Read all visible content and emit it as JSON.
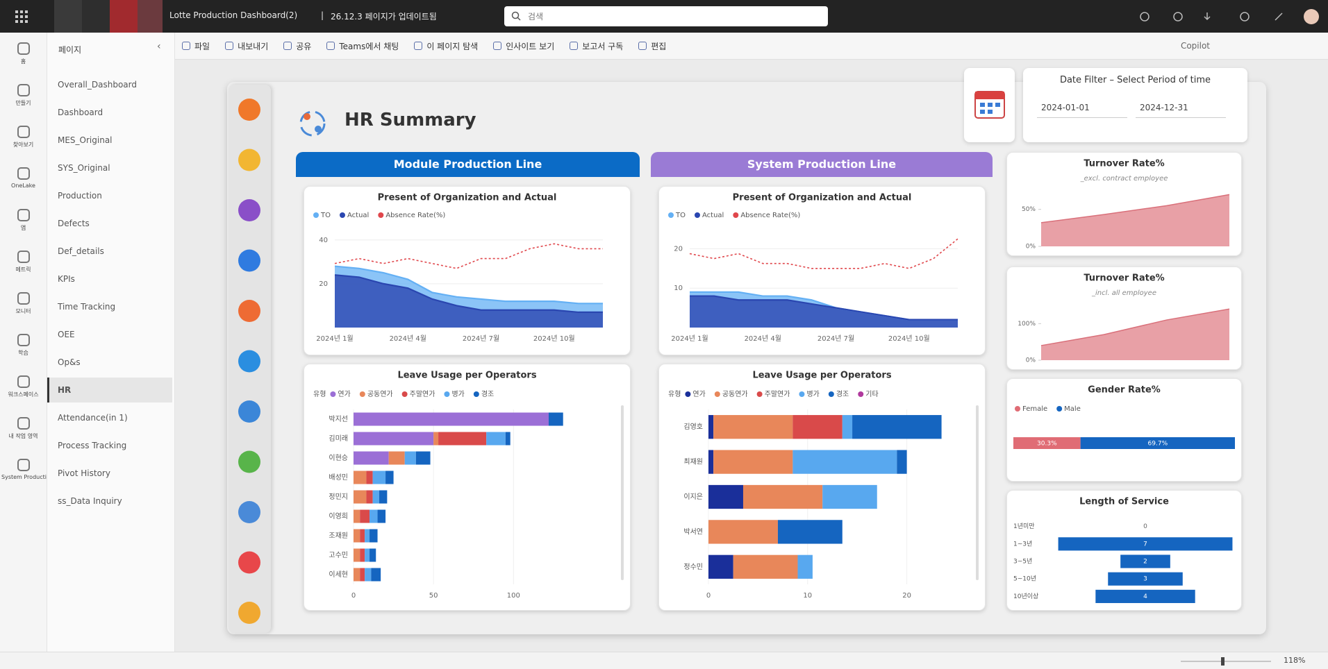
{
  "app": {
    "title": "Lotte Production Dashboard(2)",
    "subtitle": "26.12.3 페이지가 업데이트됨",
    "search": "검색"
  },
  "nav": [
    "홈",
    "만들기",
    "찾아보기",
    "OneLake",
    "앱",
    "메트릭",
    "모니터",
    "학습",
    "워크스페이스",
    "내 작업 영역",
    "System Producti..."
  ],
  "pages": {
    "header": "페이지",
    "selected": 11,
    "items": [
      "Overall_Dashboard",
      "Dashboard",
      "MES_Original",
      "SYS_Original",
      "Production",
      "Defects",
      "Def_details",
      "KPIs",
      "Time Tracking",
      "OEE",
      "Op&s",
      "HR",
      "Attendance(in 1)",
      "Process Tracking",
      "Pivot History",
      "ss_Data Inquiry"
    ]
  },
  "toolbar": {
    "items": [
      "파일",
      "내보내기",
      "공유",
      "Teams에서 채팅",
      "이 페이지 탐색",
      "인사이트 보기",
      "보고서 구독",
      "편집"
    ],
    "copilot": "Copilot"
  },
  "report": {
    "title": "HR Summary",
    "sections": [
      "Module Production Line",
      "System Production Line"
    ],
    "date_filter": {
      "label": "Date Filter – Select Period of time",
      "start": "2024-01-01",
      "end": "2024-12-31"
    }
  },
  "status": {
    "zoom": "118%"
  },
  "chart_data": [
    {
      "type": "line",
      "title": "Present of Organization and Actual",
      "categories": [
        "2024년 1월",
        null,
        null,
        "2024년 4월",
        null,
        null,
        "2024년 7월",
        null,
        null,
        "2024년 10월",
        null,
        null
      ],
      "series": [
        {
          "name": "TO",
          "color": "#64b0f4",
          "values": [
            28,
            27,
            25,
            22,
            16,
            14,
            13,
            12,
            12,
            12,
            11,
            11
          ]
        },
        {
          "name": "Actual",
          "color": "#2a46b0",
          "values": [
            24,
            23,
            20,
            18,
            13,
            10,
            8,
            8,
            8,
            8,
            7,
            7
          ]
        },
        {
          "name": "Absence Rate(%)",
          "color": "#e0474c",
          "axis": "y2",
          "values": [
            13,
            14,
            13,
            14,
            13,
            12,
            14,
            14,
            16,
            17,
            16,
            16
          ]
        }
      ],
      "ylim": [
        0,
        45
      ],
      "yticks": [
        20,
        40
      ],
      "y2lim": [
        0,
        20
      ]
    },
    {
      "type": "line",
      "title": "Present of Organization and Actual",
      "categories": [
        "2024년 1월",
        null,
        null,
        "2024년 4월",
        null,
        null,
        "2024년 7월",
        null,
        null,
        "2024년 10월",
        null,
        null
      ],
      "series": [
        {
          "name": "TO",
          "color": "#64b0f4",
          "values": [
            9,
            9,
            9,
            8,
            8,
            7,
            5,
            4,
            3,
            2,
            2,
            2
          ]
        },
        {
          "name": "Actual",
          "color": "#2a46b0",
          "values": [
            8,
            8,
            7,
            7,
            7,
            6,
            5,
            4,
            3,
            2,
            2,
            2
          ]
        },
        {
          "name": "Absence Rate(%)",
          "color": "#e0474c",
          "axis": "y2",
          "values": [
            15,
            14,
            15,
            13,
            13,
            12,
            12,
            12,
            13,
            12,
            14,
            18
          ]
        }
      ],
      "ylim": [
        0,
        25
      ],
      "yticks": [
        10,
        20
      ],
      "y2lim": [
        0,
        20
      ]
    },
    {
      "type": "hbar",
      "title": "Leave Usage per Operators",
      "legend_title": "유형",
      "categories": [
        "박지선",
        "김미래",
        "이현승",
        "배성민",
        "정민지",
        "이영희",
        "조재원",
        "고수민",
        "이세현"
      ],
      "series": [
        {
          "name": "연가",
          "color": "#9b6fd6",
          "values": [
            122,
            50,
            22,
            0,
            0,
            0,
            0,
            0,
            0
          ]
        },
        {
          "name": "공동연가",
          "color": "#e8875a",
          "values": [
            0,
            3,
            10,
            8,
            8,
            4,
            4,
            4,
            4
          ]
        },
        {
          "name": "주말연가",
          "color": "#d94a4a",
          "values": [
            0,
            30,
            0,
            4,
            4,
            6,
            3,
            3,
            3
          ]
        },
        {
          "name": "병가",
          "color": "#58a8ef",
          "values": [
            0,
            12,
            7,
            8,
            4,
            5,
            3,
            3,
            4
          ]
        },
        {
          "name": "경조",
          "color": "#1565c0",
          "values": [
            9,
            3,
            9,
            5,
            5,
            5,
            5,
            4,
            6
          ]
        }
      ],
      "xlim": [
        0,
        155
      ],
      "xticks": [
        0,
        50,
        100
      ]
    },
    {
      "type": "hbar",
      "title": "Leave Usage per Operators",
      "legend_title": "유형",
      "categories": [
        "김영호",
        "최재원",
        "이지은",
        "박서연",
        "정수민"
      ],
      "series": [
        {
          "name": "연가",
          "color": "#1a2f9a",
          "values": [
            0.5,
            0.5,
            3.5,
            0,
            2.5
          ]
        },
        {
          "name": "공동연가",
          "color": "#e8875a",
          "values": [
            8,
            8,
            8,
            7,
            6.5
          ]
        },
        {
          "name": "주말연가",
          "color": "#d94a4a",
          "values": [
            5,
            0,
            0,
            0,
            0
          ]
        },
        {
          "name": "병가",
          "color": "#58a8ef",
          "values": [
            1,
            10.5,
            5.5,
            0,
            1.5
          ]
        },
        {
          "name": "경조",
          "color": "#1565c0",
          "values": [
            9,
            1,
            0,
            6.5,
            0
          ]
        },
        {
          "name": "기타",
          "color": "#b0399d",
          "values": [
            0,
            0,
            0,
            0,
            0
          ]
        }
      ],
      "xlim": [
        0,
        25
      ],
      "xticks": [
        0,
        10,
        20
      ]
    },
    {
      "type": "area",
      "title": "Turnover Rate%",
      "subtitle": "_excl. contract employee",
      "values": [
        32,
        43,
        55,
        70
      ],
      "color": "#e8a0a6",
      "ylim": [
        0,
        75
      ],
      "yticks": [
        {
          "value": 50,
          "label": "50%"
        },
        {
          "value": 0,
          "label": "0%"
        }
      ]
    },
    {
      "type": "area",
      "title": "Turnover Rate%",
      "subtitle": "_incl. all employee",
      "values": [
        40,
        70,
        110,
        140
      ],
      "color": "#e8a0a6",
      "ylim": [
        0,
        150
      ],
      "yticks": [
        {
          "value": 100,
          "label": "100%"
        },
        {
          "value": 0,
          "label": "0%"
        }
      ]
    },
    {
      "type": "bar100",
      "title": "Gender Rate%",
      "xlim": [
        0,
        100
      ],
      "series": [
        {
          "name": "Female",
          "color": "#e06c75",
          "values": [
            30.3
          ],
          "value_labels": [
            "30.3%"
          ]
        },
        {
          "name": "Male",
          "color": "#1565c0",
          "values": [
            69.7
          ],
          "value_labels": [
            "69.7%"
          ]
        }
      ]
    },
    {
      "type": "funnel",
      "title": "Length of Service",
      "color": "#1565c0",
      "categories": [
        "1년미만",
        "1~3년",
        "3~5년",
        "5~10년",
        "10년이상"
      ],
      "values": [
        0,
        7,
        2,
        3,
        4
      ]
    }
  ]
}
